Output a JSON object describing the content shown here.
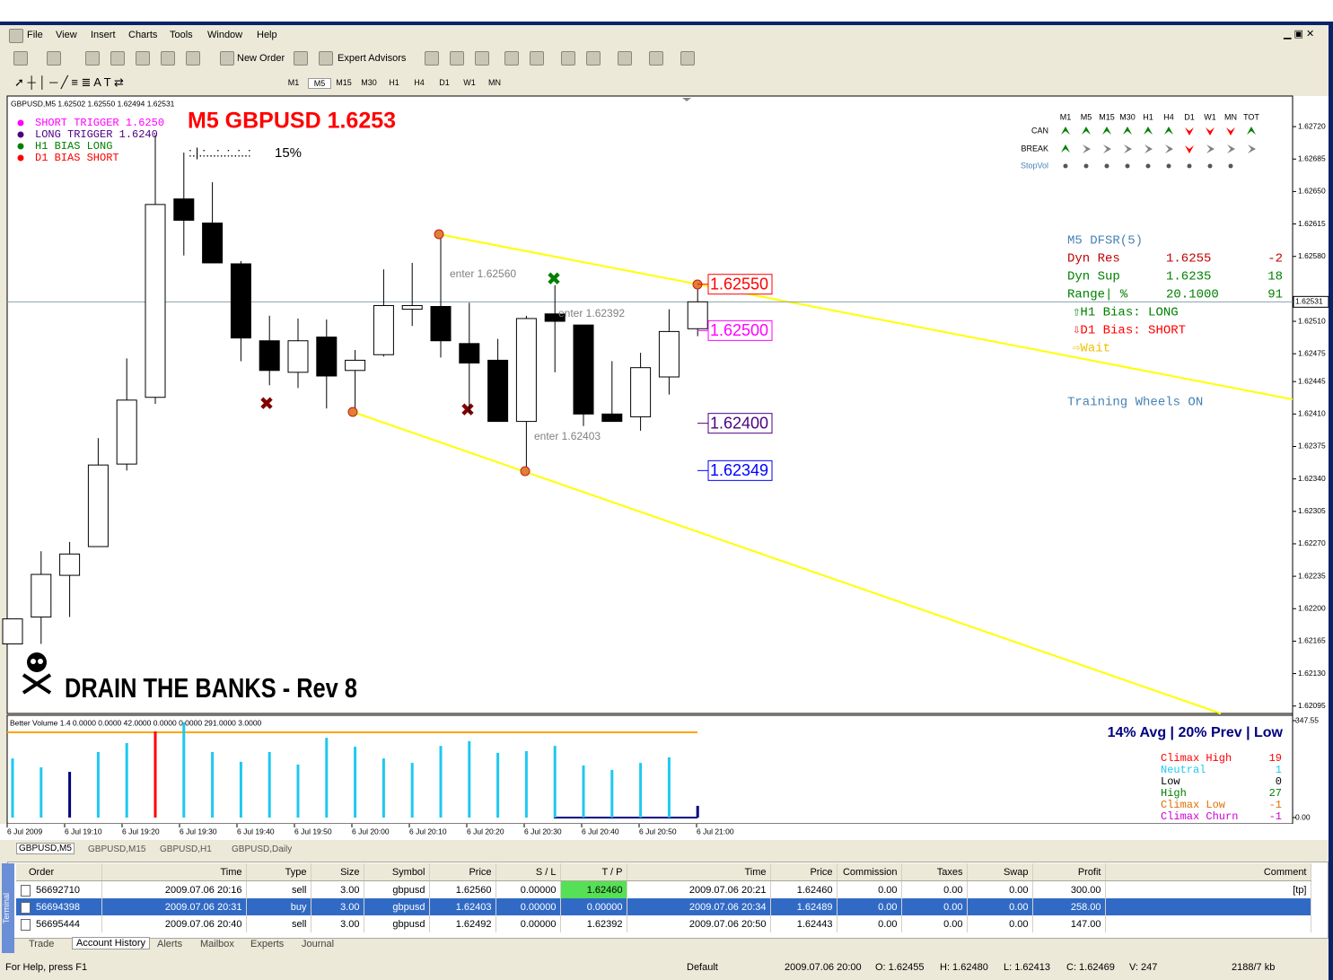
{
  "menu": [
    "File",
    "View",
    "Insert",
    "Charts",
    "Tools",
    "Window",
    "Help"
  ],
  "toolbar": {
    "new_order": "New Order",
    "expert_advisors": "Expert Advisors"
  },
  "periods": [
    "M1",
    "M5",
    "M15",
    "M30",
    "H1",
    "H4",
    "D1",
    "W1",
    "MN"
  ],
  "chart": {
    "header": "GBPUSD,M5  1.62502 1.62550 1.62494 1.62531",
    "title": "M5 GBPUSD 1.6253",
    "legend": [
      {
        "label": "SHORT TRIGGER 1.6250",
        "color": "#ff00ff"
      },
      {
        "label": "LONG TRIGGER  1.6240",
        "color": "#4b0082"
      },
      {
        "label": "H1 BIAS LONG",
        "color": "#008000"
      },
      {
        "label": "D1 BIAS SHORT",
        "color": "#ff0000"
      }
    ],
    "progress": ":.|.:...:..:..:..:",
    "percent": "15%",
    "watermark": "DRAIN THE BANKS - Rev 8",
    "ylim": [
      1.62087,
      1.62753
    ],
    "price_ticks": [
      {
        "value": 1.6272,
        "label": "1.62720"
      },
      {
        "value": 1.62685,
        "label": "1.62685"
      },
      {
        "value": 1.6265,
        "label": "1.62650"
      },
      {
        "value": 1.62615,
        "label": "1.62615"
      },
      {
        "value": 1.6258,
        "label": "1.62580"
      },
      {
        "value": 1.6251,
        "label": "1.62510"
      },
      {
        "value": 1.62475,
        "label": "1.62475"
      },
      {
        "value": 1.62445,
        "label": "1.62445"
      },
      {
        "value": 1.6241,
        "label": "1.62410"
      },
      {
        "value": 1.62375,
        "label": "1.62375"
      },
      {
        "value": 1.6234,
        "label": "1.62340"
      },
      {
        "value": 1.62305,
        "label": "1.62305"
      },
      {
        "value": 1.6227,
        "label": "1.62270"
      },
      {
        "value": 1.62235,
        "label": "1.62235"
      },
      {
        "value": 1.622,
        "label": "1.62200"
      },
      {
        "value": 1.62165,
        "label": "1.62165"
      },
      {
        "value": 1.6213,
        "label": "1.62130"
      },
      {
        "value": 1.62095,
        "label": "1.62095"
      }
    ],
    "current_price": {
      "value": 1.62531,
      "label": "1.62531"
    },
    "candles": [
      [
        1.62162,
        1.62189,
        1.62162,
        1.62189
      ],
      [
        1.62191,
        1.62262,
        1.62162,
        1.62237
      ],
      [
        1.62236,
        1.62272,
        1.62191,
        1.62259
      ],
      [
        1.62267,
        1.62384,
        1.62267,
        1.62355
      ],
      [
        1.62356,
        1.6247,
        1.62349,
        1.62425
      ],
      [
        1.62428,
        1.62711,
        1.62421,
        1.62636
      ],
      [
        1.62642,
        1.62692,
        1.62581,
        1.62619
      ],
      [
        1.62616,
        1.6266,
        1.62573,
        1.62573
      ],
      [
        1.62572,
        1.62575,
        1.62467,
        1.62492
      ],
      [
        1.62489,
        1.62516,
        1.62441,
        1.62457
      ],
      [
        1.62455,
        1.62513,
        1.62438,
        1.62489
      ],
      [
        1.62493,
        1.62512,
        1.62416,
        1.62451
      ],
      [
        1.62457,
        1.62479,
        1.62411,
        1.62468
      ],
      [
        1.62474,
        1.62566,
        1.62472,
        1.62527
      ],
      [
        1.62523,
        1.62573,
        1.62505,
        1.62527
      ],
      [
        1.62526,
        1.62603,
        1.62471,
        1.62489
      ],
      [
        1.62486,
        1.6253,
        1.62411,
        1.62465
      ],
      [
        1.62468,
        1.62491,
        1.62402,
        1.62402
      ],
      [
        1.62402,
        1.62516,
        1.62349,
        1.62513
      ],
      [
        1.62518,
        1.62549,
        1.62455,
        1.6251
      ],
      [
        1.62506,
        1.62506,
        1.62397,
        1.6241
      ],
      [
        1.6241,
        1.62467,
        1.62402,
        1.62402
      ],
      [
        1.62407,
        1.62476,
        1.62392,
        1.6246
      ],
      [
        1.6245,
        1.62523,
        1.62431,
        1.62499
      ],
      [
        1.62502,
        1.6255,
        1.62494,
        1.62531
      ]
    ],
    "level_boxes": [
      {
        "value": 1.6255,
        "label": "1.62550",
        "color": "#ff0000"
      },
      {
        "value": 1.625,
        "label": "1.62500",
        "color": "#ff00ff"
      },
      {
        "value": 1.624,
        "label": "1.62400",
        "color": "#4b0082"
      },
      {
        "value": 1.62349,
        "label": "1.62349",
        "color": "#0000ff"
      }
    ],
    "annotations": [
      "enter 1.62560",
      "enter 1.62392",
      "enter 1.62403"
    ],
    "signal_grid": {
      "timeframes": [
        "M1",
        "M5",
        "M15",
        "M30",
        "H1",
        "H4",
        "D1",
        "W1",
        "MN",
        "TOT"
      ],
      "rows": [
        "CAN",
        "BREAK",
        "StopVol"
      ]
    },
    "dfsr": {
      "title": "M5 DFSR(5)",
      "rows": [
        [
          "Dyn Res",
          "1.6255",
          "-2"
        ],
        [
          "Dyn Sup",
          "1.6235",
          "18"
        ],
        [
          "Range| %",
          "20.1000",
          "91"
        ]
      ],
      "bias": [
        "⇧H1 Bias:  LONG",
        "⇩D1 Bias:  SHORT",
        "⇨Wait"
      ],
      "training": "Training Wheels ON"
    }
  },
  "volume": {
    "header": "Better Volume 1.4 0.0000 0.0000 42.0000 0.0000 0.0000 291.0000 3.0000",
    "ylim": [
      0,
      347.55
    ],
    "yticks": [
      347.55,
      {
        "value": 0,
        "label": "0.00"
      }
    ],
    "values": [
      212,
      180,
      164,
      235,
      267,
      309,
      341,
      235,
      200,
      235,
      190,
      286,
      254,
      212,
      196,
      257,
      274,
      232,
      238,
      257,
      187,
      171,
      196,
      216,
      42
    ],
    "colors": [
      "#1ec8f0",
      "#1ec8f0",
      "#000080",
      "#1ec8f0",
      "#1ec8f0",
      "#ff0000",
      "#1ec8f0",
      "#1ec8f0",
      "#1ec8f0",
      "#1ec8f0",
      "#1ec8f0",
      "#1ec8f0",
      "#1ec8f0",
      "#1ec8f0",
      "#1ec8f0",
      "#1ec8f0",
      "#1ec8f0",
      "#1ec8f0",
      "#1ec8f0",
      "#1ec8f0",
      "#1ec8f0",
      "#1ec8f0",
      "#1ec8f0",
      "#1ec8f0",
      "#000080"
    ],
    "stats_title": "14% Avg | 20% Prev | Low",
    "stats": [
      {
        "label": "Climax High",
        "value": 19,
        "color": "#ff0000"
      },
      {
        "label": "Neutral",
        "value": 1,
        "color": "#1ec8f0"
      },
      {
        "label": "Low",
        "value": 0,
        "color": "#000000"
      },
      {
        "label": "High",
        "value": 27,
        "color": "#008000"
      },
      {
        "label": "Climax Low",
        "value": -1,
        "color": "#e07000"
      },
      {
        "label": "Climax Churn",
        "value": -1,
        "color": "#d000d0"
      }
    ]
  },
  "time_axis": [
    "6 Jul 2009",
    "6 Jul 19:10",
    "6 Jul 19:20",
    "6 Jul 19:30",
    "6 Jul 19:40",
    "6 Jul 19:50",
    "6 Jul 20:00",
    "6 Jul 20:10",
    "6 Jul 20:20",
    "6 Jul 20:30",
    "6 Jul 20:40",
    "6 Jul 20:50",
    "6 Jul 21:00"
  ],
  "chart_tabs": [
    "GBPUSD,M5",
    "GBPUSD,M15",
    "GBPUSD,H1",
    "GBPUSD,Daily"
  ],
  "terminal": {
    "columns": [
      "Order",
      "Time",
      "Type",
      "Size",
      "Symbol",
      "Price",
      "S / L",
      "T / P",
      "Time",
      "Price",
      "Commission",
      "Taxes",
      "Swap",
      "Profit",
      "Comment"
    ],
    "rows": [
      [
        "56692710",
        "2009.07.06 20:16",
        "sell",
        "3.00",
        "gbpusd",
        "1.62560",
        "0.00000",
        "1.62460",
        "2009.07.06 20:21",
        "1.62460",
        "0.00",
        "0.00",
        "0.00",
        "300.00",
        "[tp]"
      ],
      [
        "56694398",
        "2009.07.06 20:31",
        "buy",
        "3.00",
        "gbpusd",
        "1.62403",
        "0.00000",
        "0.00000",
        "2009.07.06 20:34",
        "1.62489",
        "0.00",
        "0.00",
        "0.00",
        "258.00"
      ],
      [
        "56695444",
        "2009.07.06 20:40",
        "sell",
        "3.00",
        "gbpusd",
        "1.62492",
        "0.00000",
        "1.62392",
        "2009.07.06 20:50",
        "1.62443",
        "0.00",
        "0.00",
        "0.00",
        "147.00"
      ]
    ]
  },
  "terminal_tabs": [
    "Trade",
    "Account History",
    "Alerts",
    "Mailbox",
    "Experts",
    "Journal"
  ],
  "terminal_label": "Terminal",
  "status": [
    "For Help, press F1",
    "Default",
    "2009.07.06 20:00",
    "O: 1.62455",
    "H: 1.62480",
    "L: 1.62413",
    "C: 1.62469",
    "V: 247",
    "2188/7 kb"
  ]
}
